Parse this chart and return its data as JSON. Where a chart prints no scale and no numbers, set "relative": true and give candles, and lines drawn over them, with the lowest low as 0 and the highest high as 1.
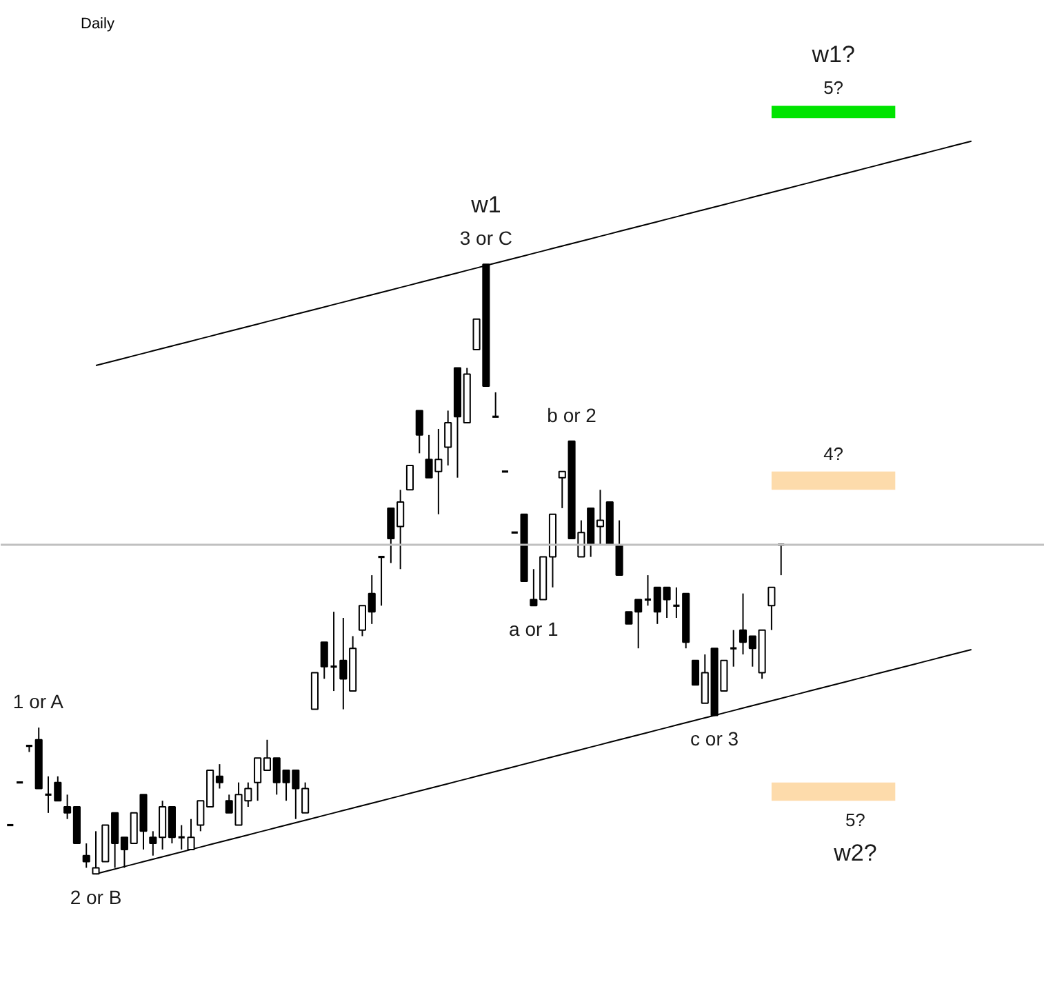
{
  "chart_data": {
    "type": "candlestick",
    "title": "Daily",
    "relative": true,
    "color": "#000000",
    "categories": [
      null,
      null,
      null,
      null,
      null,
      null,
      null,
      null,
      null,
      null,
      null,
      null,
      null,
      null,
      null,
      null,
      null,
      null,
      null,
      null,
      null,
      null,
      null,
      null,
      null,
      null,
      null,
      null,
      null,
      null,
      null,
      null,
      null,
      null,
      null,
      null,
      null,
      null,
      null,
      null,
      null,
      null,
      null,
      null,
      null,
      null,
      null,
      null,
      null,
      null,
      null,
      null,
      null,
      null,
      null,
      null,
      null,
      null,
      null,
      null,
      null,
      null,
      null,
      null,
      null,
      null,
      null,
      null,
      null,
      null,
      null,
      null,
      null,
      null,
      null,
      null,
      null,
      null,
      null,
      null,
      null,
      null,
      null,
      null,
      null,
      null,
      null,
      null,
      null,
      null,
      null,
      null,
      null,
      null,
      null,
      null,
      null,
      null,
      null,
      null,
      null,
      null
    ],
    "ohlc": [
      [
        0.08,
        0.08,
        0.08,
        0.08
      ],
      [
        0.15,
        0.15,
        0.15,
        0.15
      ],
      [
        0.21,
        0.21,
        0.2,
        0.21
      ],
      [
        0.22,
        0.24,
        0.14,
        0.14
      ],
      [
        0.13,
        0.16,
        0.1,
        0.13
      ],
      [
        0.15,
        0.16,
        0.12,
        0.12
      ],
      [
        0.11,
        0.13,
        0.09,
        0.1
      ],
      [
        0.11,
        0.11,
        0.05,
        0.05
      ],
      [
        0.03,
        0.05,
        0.01,
        0.02
      ],
      [
        0,
        0.07,
        0,
        0.01
      ],
      [
        0.02,
        0.08,
        0.02,
        0.08
      ],
      [
        0.1,
        0.1,
        0.01,
        0.05
      ],
      [
        0.06,
        0.06,
        0.01,
        0.04
      ],
      [
        0.05,
        0.1,
        0.05,
        0.1
      ],
      [
        0.13,
        0.13,
        0.04,
        0.07
      ],
      [
        0.06,
        0.07,
        0.03,
        0.05
      ],
      [
        0.06,
        0.12,
        0.04,
        0.11
      ],
      [
        0.11,
        0.11,
        0.05,
        0.06
      ],
      [
        0.06,
        0.08,
        0.04,
        0.06
      ],
      [
        0.04,
        0.09,
        0.04,
        0.06
      ],
      [
        0.08,
        0.12,
        0.07,
        0.12
      ],
      [
        0.11,
        0.17,
        0.11,
        0.17
      ],
      [
        0.16,
        0.18,
        0.14,
        0.15
      ],
      [
        0.12,
        0.13,
        0.1,
        0.1
      ],
      [
        0.08,
        0.15,
        0.08,
        0.13
      ],
      [
        0.12,
        0.15,
        0.11,
        0.14
      ],
      [
        0.15,
        0.19,
        0.12,
        0.19
      ],
      [
        0.17,
        0.22,
        0.17,
        0.19
      ],
      [
        0.19,
        0.19,
        0.13,
        0.15
      ],
      [
        0.17,
        0.17,
        0.12,
        0.15
      ],
      [
        0.17,
        0.17,
        0.09,
        0.14
      ],
      [
        0.1,
        0.15,
        0.1,
        0.14
      ],
      [
        0.27,
        0.33,
        0.27,
        0.33
      ],
      [
        0.38,
        0.38,
        0.32,
        0.34
      ],
      [
        0.34,
        0.43,
        0.3,
        0.34
      ],
      [
        0.35,
        0.42,
        0.27,
        0.32
      ],
      [
        0.3,
        0.39,
        0.3,
        0.37
      ],
      [
        0.4,
        0.44,
        0.39,
        0.44
      ],
      [
        0.46,
        0.49,
        0.41,
        0.43
      ],
      [
        0.52,
        0.52,
        0.44,
        0.52
      ],
      [
        0.6,
        0.6,
        0.51,
        0.55
      ],
      [
        0.57,
        0.63,
        0.5,
        0.61
      ],
      [
        0.63,
        0.67,
        0.63,
        0.67
      ],
      [
        0.76,
        0.76,
        0.69,
        0.72
      ],
      [
        0.68,
        0.72,
        0.65,
        0.65
      ],
      [
        0.66,
        0.73,
        0.59,
        0.68
      ],
      [
        0.7,
        0.76,
        0.67,
        0.74
      ],
      [
        0.83,
        0.83,
        0.65,
        0.75
      ],
      [
        0.74,
        0.83,
        0.74,
        0.82
      ],
      [
        0.86,
        0.91,
        0.86,
        0.91
      ],
      [
        1,
        1,
        0.8,
        0.8
      ],
      [
        0.75,
        0.79,
        0.75,
        0.75
      ],
      [
        0.66,
        0.66,
        0.66,
        0.66
      ],
      [
        0.56,
        0.56,
        0.56,
        0.56
      ],
      [
        0.59,
        0.59,
        0.48,
        0.48
      ],
      [
        0.45,
        0.5,
        0.44,
        0.44
      ],
      [
        0.45,
        0.52,
        0.45,
        0.52
      ],
      [
        0.52,
        0.59,
        0.47,
        0.59
      ],
      [
        0.65,
        0.66,
        0.6,
        0.66
      ],
      [
        0.71,
        0.71,
        0.55,
        0.55
      ],
      [
        0.52,
        0.58,
        0.52,
        0.56
      ],
      [
        0.6,
        0.6,
        0.52,
        0.54
      ],
      [
        0.57,
        0.63,
        0.54,
        0.58
      ],
      [
        0.61,
        0.61,
        0.54,
        0.54
      ],
      [
        0.54,
        0.58,
        0.49,
        0.49
      ],
      [
        0.43,
        0.43,
        0.41,
        0.41
      ],
      [
        0.45,
        0.45,
        0.37,
        0.43
      ],
      [
        0.45,
        0.49,
        0.44,
        0.45
      ],
      [
        0.47,
        0.47,
        0.41,
        0.43
      ],
      [
        0.47,
        0.47,
        0.42,
        0.45
      ],
      [
        0.44,
        0.47,
        0.42,
        0.44
      ],
      [
        0.46,
        0.46,
        0.37,
        0.38
      ],
      [
        0.35,
        0.35,
        0.31,
        0.31
      ],
      [
        0.28,
        0.36,
        0.28,
        0.33
      ],
      [
        0.37,
        0.37,
        0.26,
        0.26
      ],
      [
        0.3,
        0.35,
        0.3,
        0.35
      ],
      [
        0.37,
        0.4,
        0.34,
        0.37
      ],
      [
        0.4,
        0.46,
        0.36,
        0.38
      ],
      [
        0.39,
        0.39,
        0.34,
        0.37
      ],
      [
        0.33,
        0.4,
        0.32,
        0.4
      ],
      [
        0.44,
        0.47,
        0.4,
        0.47
      ],
      [
        0.54,
        0.54,
        0.49,
        0.54
      ],
      null,
      null,
      null,
      null,
      null,
      null,
      null,
      null,
      null,
      null,
      null,
      null,
      null,
      null,
      null,
      null,
      null,
      null,
      null,
      null
    ],
    "colors": [
      "#000000",
      "#000000",
      "#000000",
      "#000000",
      "#000000",
      "#000000",
      "#000000",
      "#000000",
      "#000000",
      "#ffffff",
      "#ffffff",
      "#000000",
      "#000000",
      "#ffffff",
      "#000000",
      "#000000",
      "#ffffff",
      "#000000",
      "#000000",
      "#ffffff",
      "#ffffff",
      "#ffffff",
      "#000000",
      "#000000",
      "#ffffff",
      "#ffffff",
      "#ffffff",
      "#ffffff",
      "#000000",
      "#000000",
      "#000000",
      "#ffffff",
      "#ffffff",
      "#000000",
      "#000000",
      "#000000",
      "#ffffff",
      "#ffffff",
      "#000000",
      "#000000",
      "#000000",
      "#ffffff",
      "#ffffff",
      "#000000",
      "#000000",
      "#ffffff",
      "#ffffff",
      "#000000",
      "#ffffff",
      "#ffffff",
      "#000000",
      "#000000",
      "#000000",
      "#000000",
      "#000000",
      "#000000",
      "#ffffff",
      "#ffffff",
      "#ffffff",
      "#000000",
      "#ffffff",
      "#000000",
      "#ffffff",
      "#000000",
      "#000000",
      "#000000",
      "#000000",
      "#000000",
      "#000000",
      "#000000",
      "#000000",
      "#000000",
      "#000000",
      "#ffffff",
      "#000000",
      "#ffffff",
      "#000000",
      "#000000",
      "#000000",
      "#ffffff",
      "#ffffff",
      "#000000",
      null,
      null,
      null,
      null,
      null,
      null,
      null,
      null,
      null,
      null,
      null,
      null,
      null,
      null,
      null,
      null,
      null,
      null,
      null,
      null
    ],
    "value_labels": [
      null,
      null,
      null,
      "1 or A",
      null,
      null,
      null,
      null,
      null,
      "2 or B",
      null,
      null,
      null,
      null,
      null,
      null,
      null,
      null,
      null,
      null,
      null,
      null,
      null,
      null,
      null,
      null,
      null,
      null,
      null,
      null,
      null,
      null,
      null,
      null,
      null,
      null,
      null,
      null,
      null,
      null,
      null,
      null,
      null,
      null,
      null,
      null,
      null,
      null,
      null,
      null,
      "3 or C",
      null,
      null,
      null,
      null,
      "a or 1",
      null,
      null,
      null,
      "b or 2",
      null,
      null,
      null,
      null,
      null,
      null,
      null,
      null,
      null,
      null,
      null,
      null,
      null,
      null,
      "c or 3",
      null,
      null,
      null,
      null,
      null,
      null,
      null,
      null,
      null,
      null,
      null,
      null,
      null,
      null,
      null,
      null,
      null,
      null,
      null,
      null,
      null,
      null,
      null,
      null,
      null,
      null,
      null
    ],
    "series": [
      {
        "type": "line",
        "color": "#000000",
        "values": [
          null,
          null,
          null,
          null,
          null,
          null,
          null,
          null,
          null,
          0.834,
          0.838,
          0.842,
          0.846,
          0.85,
          0.854,
          0.858,
          0.862,
          0.866,
          0.87,
          0.874,
          0.878,
          0.882,
          0.886,
          0.89,
          0.894,
          0.898,
          0.902,
          0.906,
          0.91,
          0.914,
          0.918,
          0.922,
          0.926,
          0.93,
          0.934,
          0.938,
          0.942,
          0.946,
          0.95,
          0.954,
          0.958,
          0.962,
          0.966,
          0.97,
          0.974,
          0.978,
          0.982,
          0.986,
          0.99,
          0.994,
          0.998,
          1.002,
          1.006,
          1.01,
          1.014,
          1.018,
          1.022,
          1.026,
          1.03,
          1.034,
          1.038,
          1.042,
          1.046,
          1.05,
          1.054,
          1.058,
          1.062,
          1.066,
          1.07,
          1.074,
          1.078,
          1.082,
          1.086,
          1.09,
          1.094,
          1.098,
          1.102,
          1.106,
          1.11,
          1.114,
          1.118,
          1.122,
          1.126,
          1.13,
          1.134,
          1.138,
          1.142,
          1.146,
          1.15,
          1.154,
          1.158,
          1.162,
          1.166,
          1.17,
          1.174,
          1.178,
          1.182,
          1.186,
          1.19,
          1.194,
          1.198,
          1.202
        ]
      },
      {
        "type": "line",
        "color": "#000000",
        "values": [
          null,
          null,
          null,
          null,
          null,
          null,
          null,
          null,
          null,
          0,
          0.004,
          0.008,
          0.012,
          0.016,
          0.02,
          0.024,
          0.028,
          0.032,
          0.036,
          0.04,
          0.044,
          0.048,
          0.052,
          0.056,
          0.06,
          0.064,
          0.068,
          0.072,
          0.076,
          0.08,
          0.084,
          0.088,
          0.092,
          0.096,
          0.1,
          0.104,
          0.108,
          0.112,
          0.116,
          0.12,
          0.124,
          0.128,
          0.132,
          0.136,
          0.14,
          0.144,
          0.148,
          0.152,
          0.156,
          0.16,
          0.164,
          0.168,
          0.172,
          0.176,
          0.18,
          0.184,
          0.188,
          0.192,
          0.196,
          0.2,
          0.204,
          0.208,
          0.212,
          0.216,
          0.22,
          0.224,
          0.228,
          0.232,
          0.236,
          0.24,
          0.244,
          0.248,
          0.252,
          0.256,
          0.26,
          0.264,
          0.268,
          0.272,
          0.276,
          0.28,
          0.284,
          0.288,
          0.292,
          0.296,
          0.3,
          0.304,
          0.308,
          0.312,
          0.316,
          0.32,
          0.324,
          0.328,
          0.332,
          0.336,
          0.34,
          0.344,
          0.348,
          0.352,
          0.356,
          0.36,
          0.364,
          0.368
        ]
      }
    ],
    "ref_lines": [
      {
        "axis": "y",
        "value": 0.54,
        "color": "#c0c0c0"
      }
    ],
    "bands": [
      {
        "axis": "y",
        "from": 1.24,
        "to": 1.26,
        "label": "5?",
        "color": "#00e400"
      },
      {
        "axis": "y",
        "from": 0.63,
        "to": 0.66,
        "label": "4?",
        "color": "#fddbab"
      },
      {
        "axis": "y",
        "from": 0.12,
        "to": 0.15,
        "label": "5?",
        "color": "#fddbab"
      }
    ],
    "annotations": [
      "w1",
      "w1?",
      "w2?"
    ]
  }
}
